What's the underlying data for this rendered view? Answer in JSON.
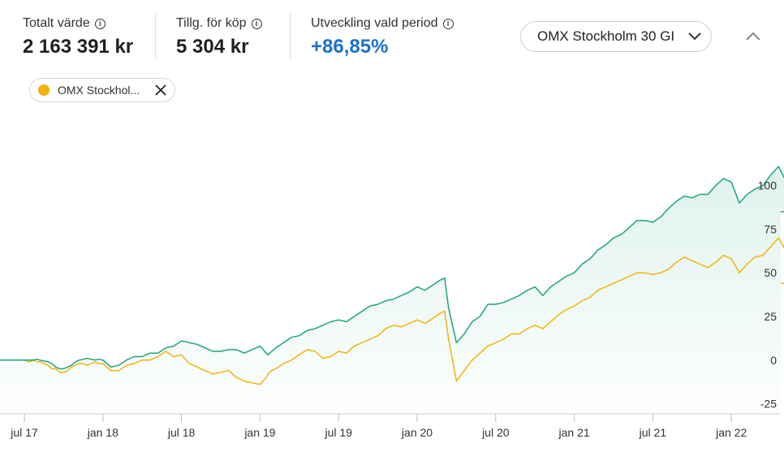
{
  "kpis": {
    "total_value": {
      "label": "Totalt värde",
      "value": "2 163 391 kr"
    },
    "available": {
      "label": "Tillg. för köp",
      "value": "5 304 kr"
    },
    "development": {
      "label": "Utveckling vald period",
      "value": "+86,85%"
    }
  },
  "index_select": {
    "value": "OMX Stockholm 30 GI"
  },
  "comparison_chip": {
    "label": "OMX Stockhol...",
    "color": "#f2b20c"
  },
  "colors": {
    "portfolio": "#1aa57a",
    "index": "#f2b20c",
    "positive": "#1a72c9"
  },
  "icons": {
    "info": "info-icon",
    "chevron": "chevron-down-icon",
    "collapse": "chevron-up-icon",
    "close": "close-icon"
  },
  "chart_data": {
    "type": "line",
    "xlabel": "",
    "ylabel": "",
    "x_ticks": [
      "jul 17",
      "jan 18",
      "jul 18",
      "jan 19",
      "jul 19",
      "jan 20",
      "jul 20",
      "jan 21",
      "jul 21",
      "jan 22"
    ],
    "y_ticks": [
      100,
      75,
      50,
      25,
      0,
      -25
    ],
    "ylim": [
      -28,
      118
    ],
    "x": [
      0,
      0.06,
      0.12,
      0.16,
      0.2,
      0.25,
      0.3,
      0.35,
      0.4,
      0.45,
      0.5,
      0.55,
      0.6,
      0.65,
      0.7,
      0.75,
      0.8,
      0.85,
      0.9,
      0.95,
      1.0,
      1.1,
      1.2,
      1.3,
      1.4,
      1.5,
      1.6,
      1.7,
      1.8,
      1.9,
      2.0,
      2.1,
      2.2,
      2.3,
      2.4,
      2.5,
      2.6,
      2.7,
      2.8,
      2.9,
      3.0,
      3.08,
      3.1,
      3.15,
      3.2,
      3.3,
      3.4,
      3.5,
      3.6,
      3.7,
      3.8,
      3.9,
      4.0,
      4.1,
      4.2,
      4.3,
      4.4,
      4.5,
      4.6,
      4.7,
      4.8,
      4.9,
      5.0,
      5.1,
      5.2,
      5.3,
      5.35,
      5.4,
      5.5,
      5.6,
      5.7,
      5.8,
      5.9,
      6.0,
      6.1,
      6.2,
      6.3,
      6.4,
      6.5,
      6.6,
      6.7,
      6.8,
      6.9,
      7.0,
      7.1,
      7.2,
      7.3,
      7.4,
      7.5,
      7.6,
      7.7,
      7.8,
      7.9,
      8.0,
      8.1,
      8.2,
      8.3,
      8.4,
      8.5,
      8.6,
      8.7,
      8.8,
      8.9,
      9.0,
      9.1,
      9.2,
      9.3,
      9.4,
      9.5,
      9.6,
      9.7,
      9.8,
      9.9,
      9.97
    ],
    "series": [
      {
        "values": [
          0,
          0,
          0,
          0.5,
          0,
          -0.5,
          -1,
          -2,
          -4,
          -5,
          -5,
          -4,
          -3,
          -1,
          0,
          0.5,
          1,
          0.5,
          0,
          0.5,
          0,
          -4,
          -3,
          0,
          2,
          2,
          4,
          4,
          7,
          8,
          11,
          10,
          9,
          7,
          5,
          5,
          6,
          6,
          4,
          6,
          8,
          4,
          3,
          5,
          7,
          10,
          13,
          14,
          17,
          18,
          20,
          22,
          23,
          22,
          25,
          28,
          31,
          32,
          34,
          35,
          37,
          39,
          42,
          40,
          43,
          46,
          47,
          30,
          10,
          15,
          22,
          25,
          32,
          32,
          33,
          35,
          37,
          40,
          42,
          37,
          42,
          45,
          48,
          50,
          55,
          58,
          63,
          66,
          70,
          72,
          76,
          80,
          80,
          79,
          82,
          87,
          91,
          94,
          93,
          95,
          95,
          100,
          104,
          102,
          90,
          95,
          98,
          100,
          106,
          111,
          102,
          98,
          95,
          85
        ]
      },
      {
        "values": [
          0,
          -1,
          0,
          -1,
          -1,
          -2,
          -3,
          -5,
          -5,
          -7,
          -7,
          -6,
          -4,
          -3,
          -2,
          -2,
          -3,
          -2,
          -1,
          -2,
          -2,
          -6,
          -6,
          -3,
          -2,
          0,
          0,
          2,
          5,
          2,
          3,
          -2,
          -4,
          -6,
          -8,
          -7,
          -6,
          -10,
          -12,
          -13,
          -14,
          -10,
          -8,
          -6,
          -5,
          -2,
          0,
          3,
          6,
          5,
          1,
          2,
          5,
          4,
          8,
          10,
          12,
          14,
          18,
          20,
          19,
          21,
          23,
          21,
          24,
          27,
          28,
          12,
          -12,
          -6,
          0,
          4,
          8,
          10,
          12,
          15,
          15,
          18,
          20,
          18,
          22,
          26,
          29,
          31,
          34,
          36,
          40,
          42,
          44,
          46,
          48,
          50,
          50,
          49,
          50,
          52,
          56,
          59,
          57,
          55,
          53,
          56,
          60,
          58,
          50,
          55,
          59,
          60,
          65,
          70,
          62,
          55,
          48,
          44
        ]
      }
    ]
  }
}
